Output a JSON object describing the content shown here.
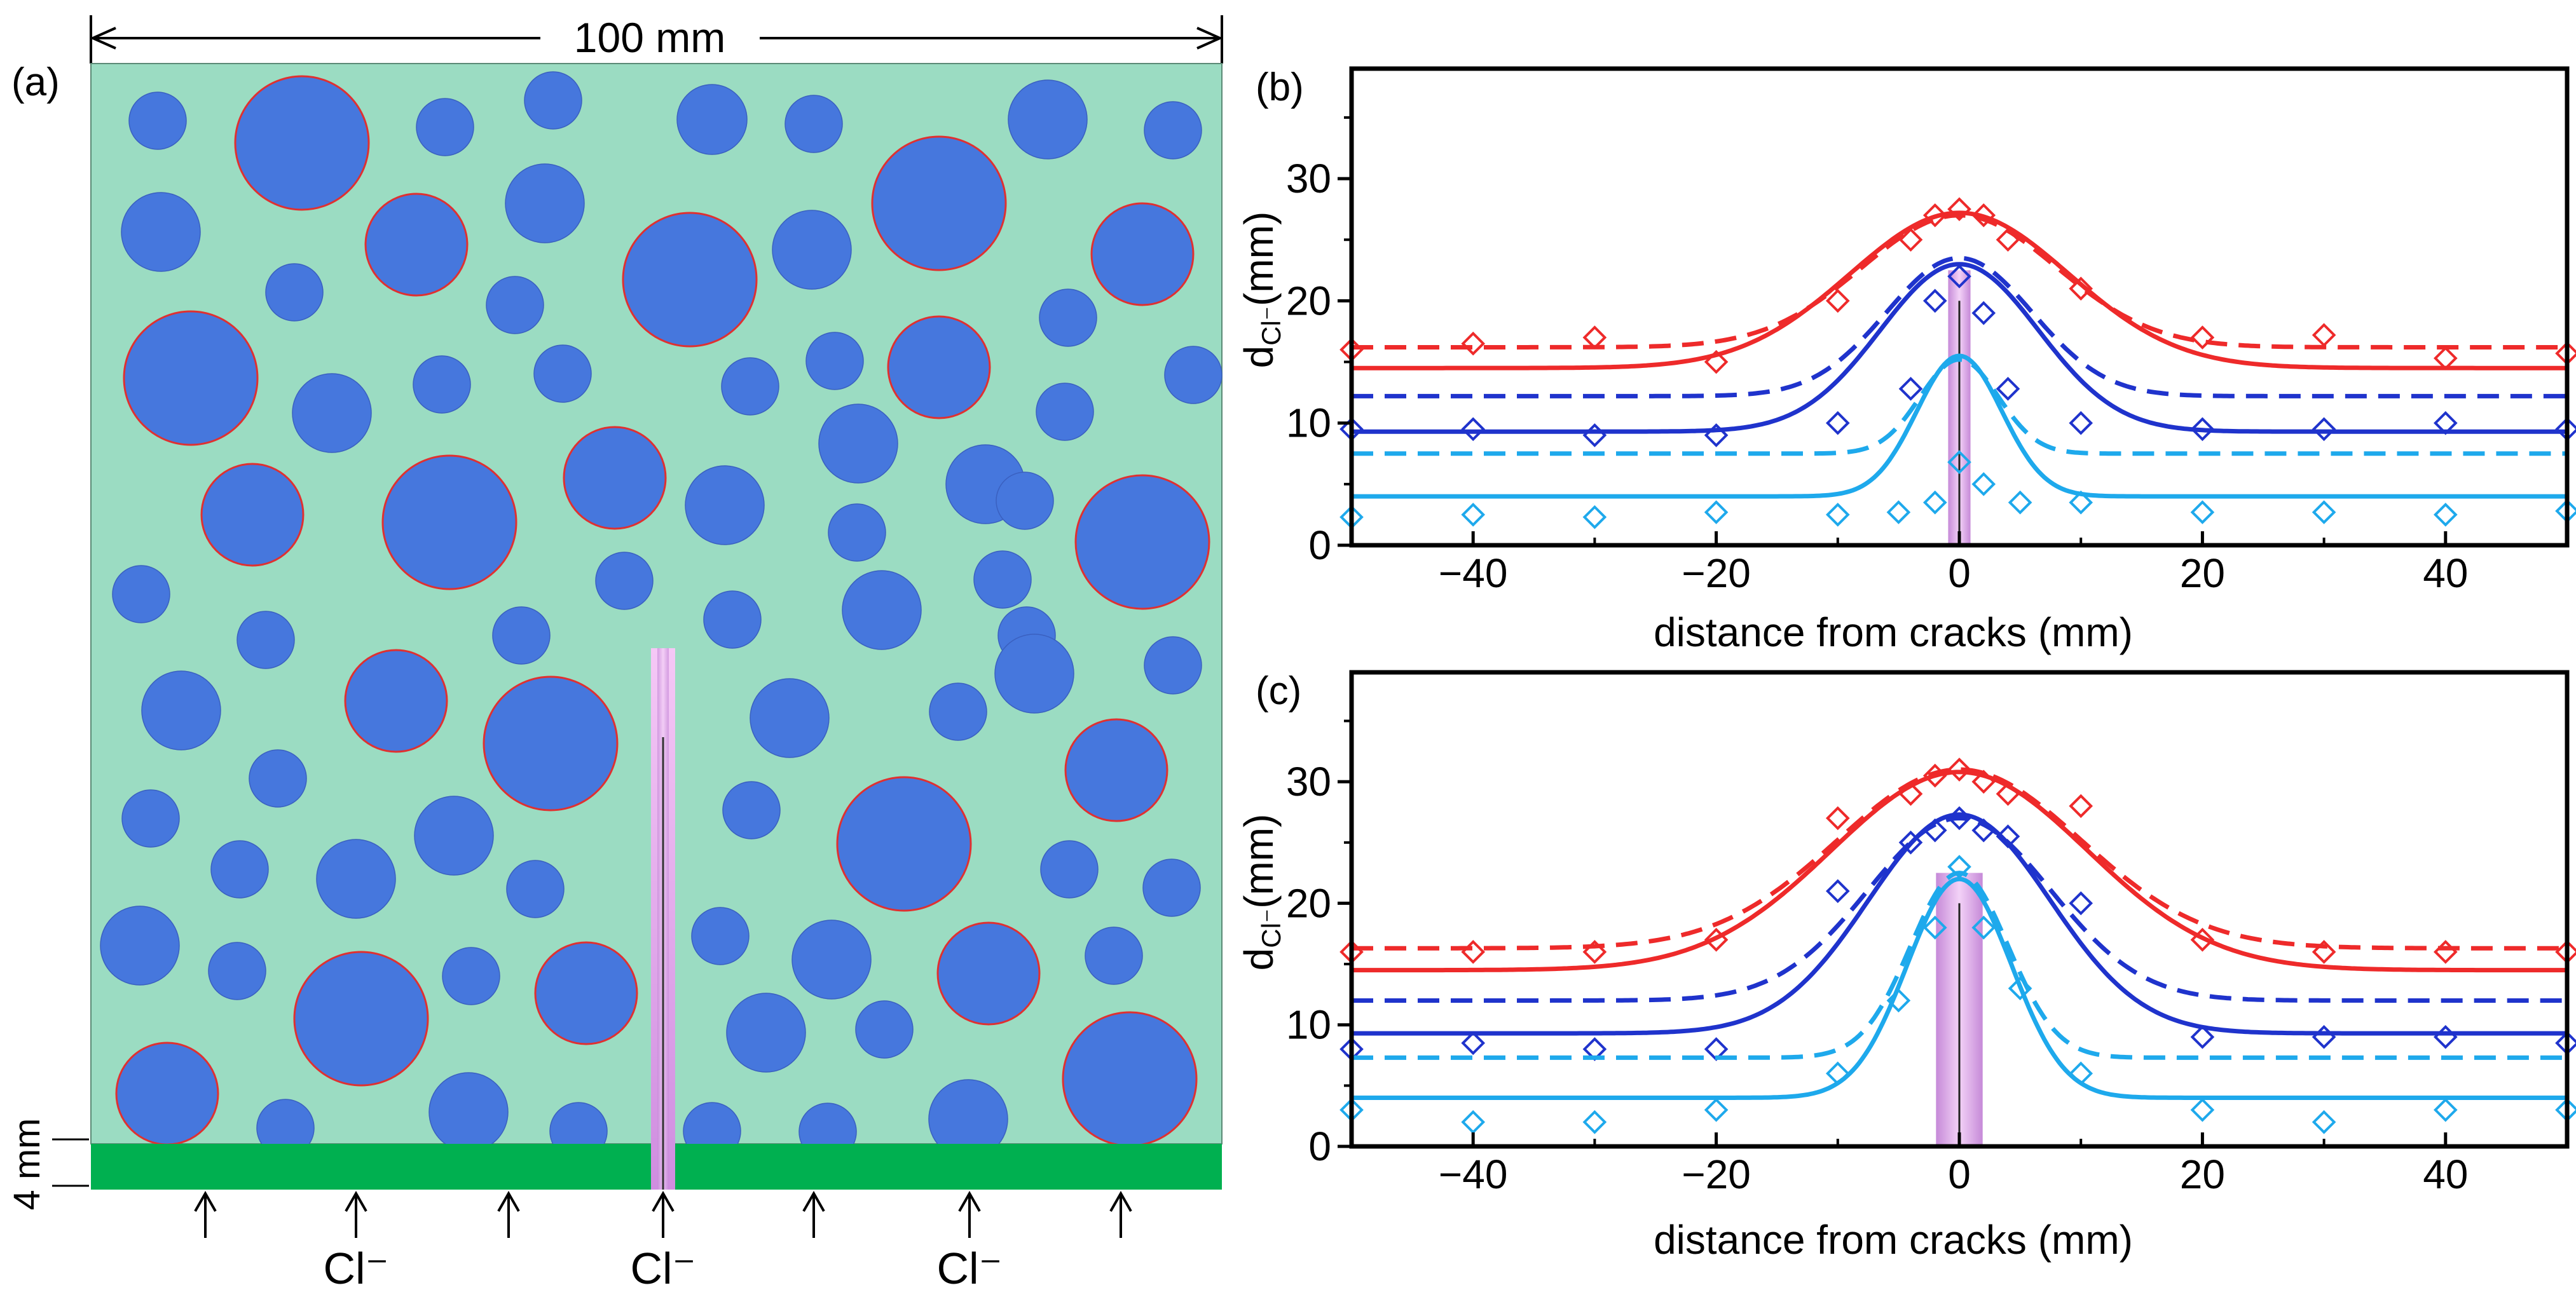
{
  "panel_a": {
    "label": "(a)",
    "width_label": "100 mm",
    "depth_label": "4 mm",
    "ion_labels": [
      "Cl⁻",
      "Cl⁻",
      "Cl⁻"
    ],
    "colors": {
      "matrix": "#9bdcc2",
      "aggregate": "#4677dd",
      "aggregate_edge": "#e03030",
      "layer": "#00b050",
      "crack": "#e0a8ee"
    }
  },
  "chart_data": [
    {
      "type": "line",
      "panel_label": "(b)",
      "xlabel": "distance from cracks  (mm)",
      "ylabel_main": "d",
      "ylabel_sub": "Cl⁻",
      "ylabel_unit": "(mm)",
      "xlim": [
        -50,
        50
      ],
      "ylim": [
        0,
        39
      ],
      "xticks": [
        -40,
        -20,
        0,
        20,
        40
      ],
      "xtick_labels": [
        "−40",
        "−20",
        "0",
        "20",
        "40"
      ],
      "yticks": [
        0,
        10,
        20,
        30
      ],
      "ytick_labels": [
        "0",
        "10",
        "20",
        "30"
      ],
      "crack": {
        "x_from": -0.5,
        "x_to": 0.5,
        "y_top": 22.5,
        "inner_line_top": 20
      },
      "series": [
        {
          "name": "red",
          "color": "#ee2a2a",
          "base_solid": 14.5,
          "peak_solid": 27.2,
          "width_solid": 9.0,
          "base_dashed": 16.2,
          "peak_dashed": 27.0,
          "width_dashed": 8.0,
          "skew": 0.0,
          "markers": {
            "x": [
              -50,
              -40,
              -30,
              -20,
              -10,
              -4,
              -2,
              0,
              2,
              4,
              10,
              20,
              30,
              40,
              50
            ],
            "y": [
              16.0,
              16.5,
              17.0,
              15.0,
              20.0,
              25.0,
              27.0,
              27.5,
              27.0,
              25.0,
              21.0,
              17.0,
              17.2,
              15.3,
              15.7
            ]
          }
        },
        {
          "name": "blue",
          "color": "#1f33cc",
          "base_solid": 9.3,
          "peak_solid": 23.0,
          "width_solid": 6.5,
          "base_dashed": 12.2,
          "peak_dashed": 23.5,
          "width_dashed": 6.0,
          "skew": 0.0,
          "markers": {
            "x": [
              -50,
              -40,
              -30,
              -20,
              -10,
              -4,
              -2,
              0,
              2,
              4,
              10,
              20,
              30,
              40,
              50
            ],
            "y": [
              9.5,
              9.5,
              9.0,
              9.0,
              10.0,
              12.8,
              20.0,
              22.0,
              19.0,
              12.8,
              10.0,
              9.5,
              9.5,
              10.0,
              9.5
            ]
          }
        },
        {
          "name": "lightblue",
          "color": "#1ea9ec",
          "base_solid": 4.0,
          "peak_solid": 15.5,
          "width_solid": 3.5,
          "base_dashed": 7.5,
          "peak_dashed": 15.2,
          "width_dashed": 3.2,
          "skew": 0.0,
          "markers": {
            "x": [
              -50,
              -40,
              -30,
              -20,
              -10,
              -5,
              -2,
              0,
              2,
              5,
              10,
              20,
              30,
              40,
              50
            ],
            "y": [
              2.3,
              2.5,
              2.3,
              2.7,
              2.5,
              2.7,
              3.5,
              6.8,
              5.0,
              3.5,
              3.5,
              2.7,
              2.7,
              2.5,
              2.8
            ]
          }
        }
      ]
    },
    {
      "type": "line",
      "panel_label": "(c)",
      "xlabel": "distance from cracks  (mm)",
      "ylabel_main": "d",
      "ylabel_sub": "Cl⁻",
      "ylabel_unit": "(mm)",
      "xlim": [
        -50,
        50
      ],
      "ylim": [
        0,
        39
      ],
      "xticks": [
        -40,
        -20,
        0,
        20,
        40
      ],
      "xtick_labels": [
        "−40",
        "−20",
        "0",
        "20",
        "40"
      ],
      "yticks": [
        0,
        10,
        20,
        30
      ],
      "ytick_labels": [
        "0",
        "10",
        "20",
        "30"
      ],
      "crack": {
        "x_from": -1.5,
        "x_to": 1.5,
        "y_top": 22.5,
        "inner_line_top": 20
      },
      "series": [
        {
          "name": "red",
          "color": "#ee2a2a",
          "base_solid": 14.5,
          "peak_solid": 30.8,
          "width_solid": 10.5,
          "base_dashed": 16.3,
          "peak_dashed": 31.0,
          "width_dashed": 10.0,
          "skew": 0.0,
          "markers": {
            "x": [
              -50,
              -40,
              -30,
              -20,
              -10,
              -4,
              -2,
              0,
              2,
              4,
              10,
              20,
              30,
              40,
              50
            ],
            "y": [
              16.0,
              16.0,
              16.0,
              17.0,
              27.0,
              29.0,
              30.5,
              31.0,
              30.0,
              29.0,
              28.0,
              17.0,
              16.0,
              16.0,
              16.0
            ]
          }
        },
        {
          "name": "blue",
          "color": "#1f33cc",
          "base_solid": 9.3,
          "peak_solid": 27.3,
          "width_solid": 7.5,
          "base_dashed": 12.0,
          "peak_dashed": 27.0,
          "width_dashed": 7.5,
          "skew": 0.0,
          "markers": {
            "x": [
              -50,
              -40,
              -30,
              -20,
              -10,
              -4,
              -2,
              0,
              2,
              4,
              10,
              20,
              30,
              40,
              50
            ],
            "y": [
              8.0,
              8.5,
              8.0,
              8.0,
              21.0,
              25.0,
              26.0,
              27.0,
              26.0,
              25.5,
              20.0,
              9.0,
              9.0,
              9.0,
              8.5
            ]
          }
        },
        {
          "name": "lightblue",
          "color": "#1ea9ec",
          "base_solid": 4.0,
          "peak_solid": 22.0,
          "width_solid": 4.3,
          "base_dashed": 7.3,
          "peak_dashed": 22.5,
          "width_dashed": 4.0,
          "skew": 0.0,
          "markers": {
            "x": [
              -50,
              -40,
              -30,
              -20,
              -10,
              -5,
              -2,
              0,
              2,
              5,
              10,
              20,
              30,
              40,
              50
            ],
            "y": [
              3.0,
              2.0,
              2.0,
              3.0,
              6.0,
              12.0,
              18.0,
              23.0,
              18.0,
              13.0,
              6.0,
              3.0,
              2.0,
              3.0,
              3.0
            ]
          }
        }
      ]
    }
  ]
}
